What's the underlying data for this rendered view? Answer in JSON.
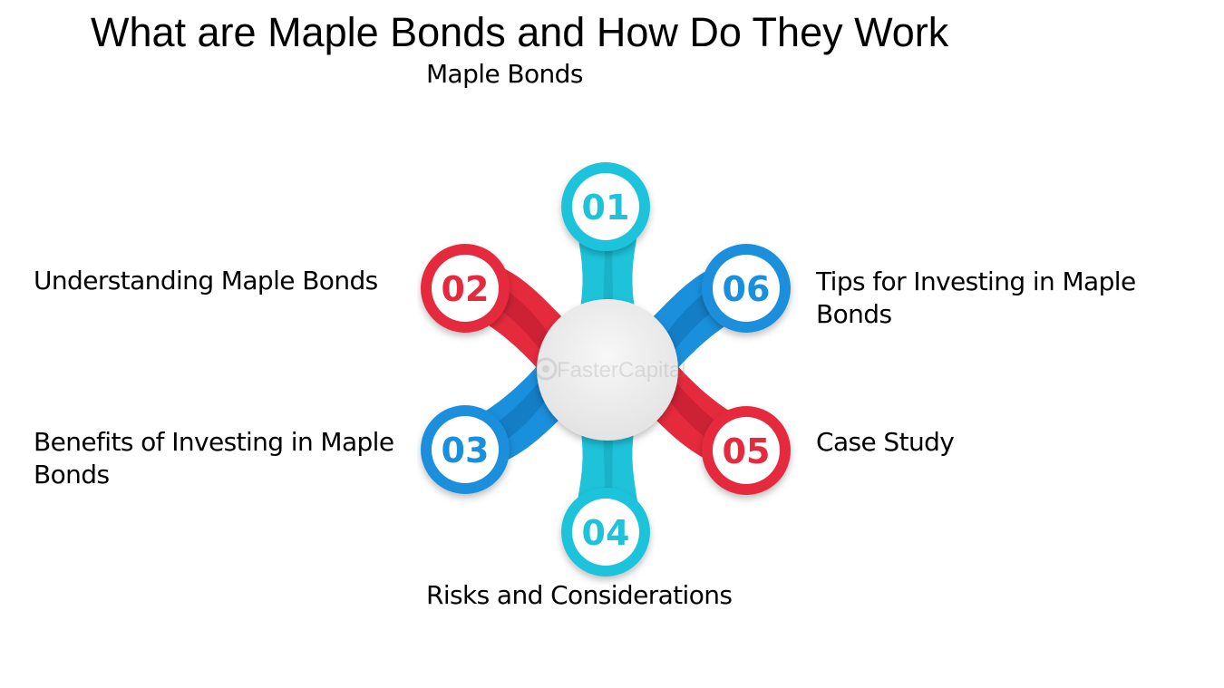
{
  "title": "What are Maple Bonds and How Do They Work",
  "steps": [
    {
      "number": "01",
      "label": "Maple Bonds"
    },
    {
      "number": "02",
      "label": "Understanding Maple Bonds"
    },
    {
      "number": "03",
      "label": "Benefits of Investing in Maple Bonds"
    },
    {
      "number": "04",
      "label": "Risks and Considerations"
    },
    {
      "number": "05",
      "label": "Case Study"
    },
    {
      "number": "06",
      "label": "Tips for Investing in Maple Bonds"
    }
  ],
  "watermark": "FasterCapital",
  "colors": {
    "cyan": "#1ec3da",
    "red": "#e52a3d",
    "blue": "#1a8fdc",
    "hub": "#ededed"
  }
}
